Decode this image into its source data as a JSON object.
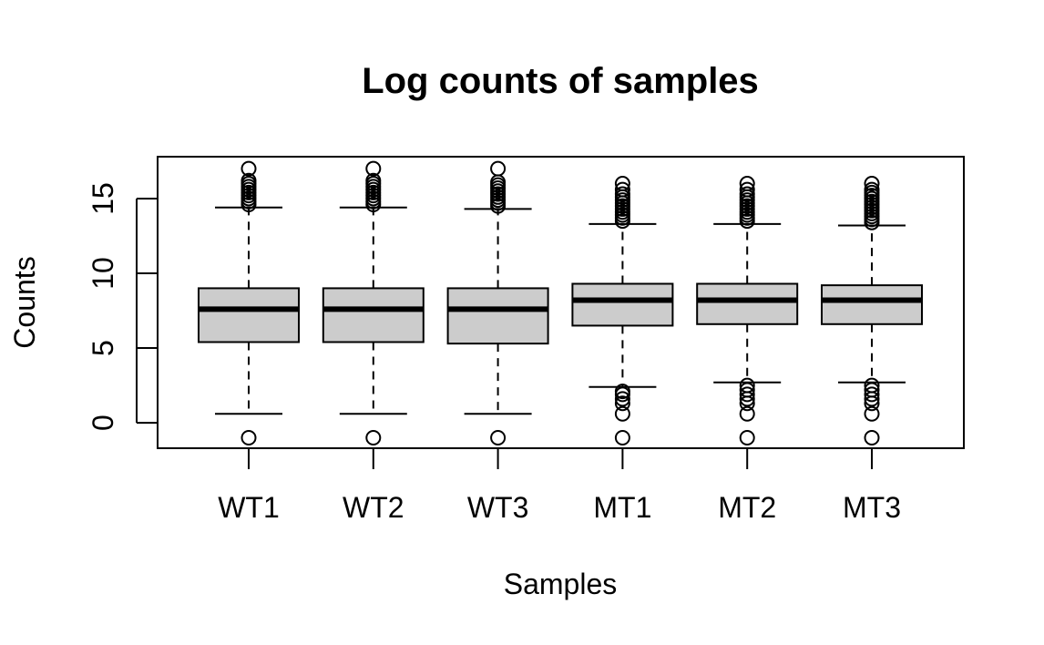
{
  "chart_data": {
    "type": "boxplot",
    "title": "Log counts of samples",
    "xlabel": "Samples",
    "ylabel": "Counts",
    "ylim": [
      -1.7,
      17.8
    ],
    "yticks": [
      "0",
      "5",
      "10",
      "15"
    ],
    "box_fill": "#cccccc",
    "categories": [
      "WT1",
      "WT2",
      "WT3",
      "MT1",
      "MT2",
      "MT3"
    ],
    "boxes": [
      {
        "name": "WT1",
        "whisker_low": 0.6,
        "q1": 5.4,
        "median": 7.6,
        "q3": 9.0,
        "whisker_high": 14.4,
        "outliers_low": [
          -1.0
        ],
        "outliers_high": [
          14.6,
          14.8,
          15.0,
          15.2,
          15.4,
          15.6,
          15.8,
          16.0,
          16.2,
          17.0
        ]
      },
      {
        "name": "WT2",
        "whisker_low": 0.6,
        "q1": 5.4,
        "median": 7.6,
        "q3": 9.0,
        "whisker_high": 14.4,
        "outliers_low": [
          -1.0
        ],
        "outliers_high": [
          14.6,
          14.8,
          15.0,
          15.2,
          15.4,
          15.6,
          15.8,
          16.0,
          16.2,
          17.0
        ]
      },
      {
        "name": "WT3",
        "whisker_low": 0.6,
        "q1": 5.3,
        "median": 7.6,
        "q3": 9.0,
        "whisker_high": 14.3,
        "outliers_low": [
          -1.0
        ],
        "outliers_high": [
          14.5,
          14.7,
          14.9,
          15.1,
          15.3,
          15.5,
          15.7,
          15.9,
          16.1,
          17.0
        ]
      },
      {
        "name": "MT1",
        "whisker_low": 2.4,
        "q1": 6.5,
        "median": 8.2,
        "q3": 9.3,
        "whisker_high": 13.3,
        "outliers_low": [
          -1.0,
          0.6,
          1.3,
          1.6,
          1.9,
          2.1
        ],
        "outliers_high": [
          13.5,
          13.7,
          13.9,
          14.1,
          14.3,
          14.5,
          14.7,
          14.9,
          15.1,
          15.3,
          15.6,
          16.0
        ]
      },
      {
        "name": "MT2",
        "whisker_low": 2.7,
        "q1": 6.6,
        "median": 8.2,
        "q3": 9.3,
        "whisker_high": 13.3,
        "outliers_low": [
          -1.0,
          0.6,
          1.3,
          1.6,
          1.9,
          2.2,
          2.5
        ],
        "outliers_high": [
          13.5,
          13.7,
          13.9,
          14.1,
          14.3,
          14.5,
          14.7,
          14.9,
          15.1,
          15.3,
          15.6,
          16.0
        ]
      },
      {
        "name": "MT3",
        "whisker_low": 2.7,
        "q1": 6.6,
        "median": 8.2,
        "q3": 9.2,
        "whisker_high": 13.2,
        "outliers_low": [
          -1.0,
          0.6,
          1.3,
          1.6,
          1.9,
          2.2,
          2.5
        ],
        "outliers_high": [
          13.4,
          13.6,
          13.8,
          14.0,
          14.2,
          14.4,
          14.6,
          14.8,
          15.0,
          15.2,
          15.4,
          15.6,
          16.0
        ]
      }
    ]
  }
}
